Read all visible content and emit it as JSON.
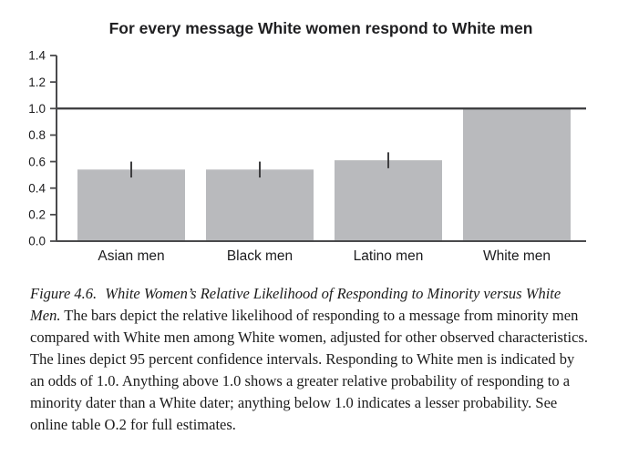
{
  "chart_data": {
    "type": "bar",
    "title": "For every message White women respond to White men",
    "categories": [
      "Asian men",
      "Black men",
      "Latino men",
      "White men"
    ],
    "values": [
      0.54,
      0.54,
      0.61,
      1.0
    ],
    "ci_low": [
      0.48,
      0.48,
      0.55,
      null
    ],
    "ci_high": [
      0.6,
      0.6,
      0.67,
      null
    ],
    "ci_note": "95 percent confidence intervals",
    "reference_line": 1.0,
    "ylim": [
      0,
      1.4
    ],
    "yticks": [
      0,
      0.2,
      0.4,
      0.6,
      0.8,
      1.0,
      1.2,
      1.4
    ],
    "ytick_decimals": 1,
    "xlabel": "",
    "ylabel": "",
    "grid": false,
    "legend": "none",
    "bar_color": "#b9babd",
    "axis_color": "#4a4a4c",
    "reference_line_color": "#39393b",
    "error_bar_color": "#3e3e40",
    "text_color": "#1c1c1e"
  },
  "caption": {
    "figure_label": "Figure 4.6.",
    "figure_title": "White Women’s Relative Likelihood of Responding to Minority versus White Men.",
    "body": "The bars depict the relative likelihood of responding to a message from minority men compared with White men among White women, adjusted for other observed characteristics. The lines depict 95 percent confidence intervals. Responding to White men is indicated by an odds of 1.0. Anything above 1.0 shows a greater relative probability of responding to a minority dater than a White dater; anything below 1.0 indicates a lesser probability. See online table O.2 for full estimates."
  }
}
